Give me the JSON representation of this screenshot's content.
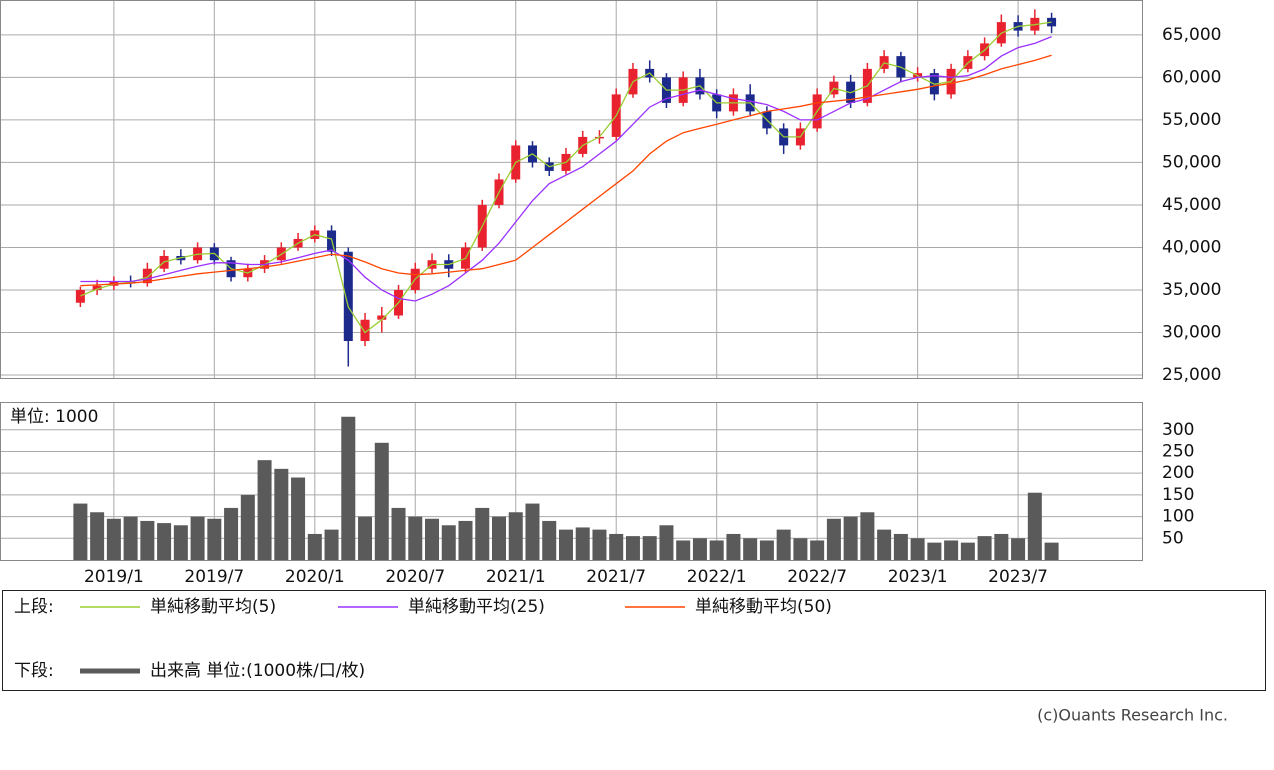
{
  "chart_data": {
    "type": "candlestick",
    "up_color": "#e8232f",
    "down_color": "#1c2a8c",
    "grid": true,
    "x": [
      -2,
      -1,
      0,
      1,
      2,
      3,
      4,
      5,
      6,
      7,
      8,
      9,
      10,
      11,
      12,
      13,
      14,
      15,
      16,
      17,
      18,
      19,
      20,
      21,
      22,
      23,
      24,
      25,
      26,
      27,
      28,
      29,
      30,
      31,
      32,
      33,
      34,
      35,
      36,
      37,
      38,
      39,
      40,
      41,
      42,
      43,
      44,
      45,
      46,
      47,
      48,
      49,
      50,
      51,
      52,
      53,
      54,
      55,
      56
    ],
    "xlim": [
      -6.8,
      61.4
    ],
    "xticks": [
      {
        "value": 0,
        "label": "2019/1"
      },
      {
        "value": 6,
        "label": "2019/7"
      },
      {
        "value": 12,
        "label": "2020/1"
      },
      {
        "value": 18,
        "label": "2020/7"
      },
      {
        "value": 24,
        "label": "2021/1"
      },
      {
        "value": 30,
        "label": "2021/7"
      },
      {
        "value": 36,
        "label": "2022/1"
      },
      {
        "value": 42,
        "label": "2022/7"
      },
      {
        "value": 48,
        "label": "2023/1"
      },
      {
        "value": 54,
        "label": "2023/7"
      }
    ],
    "ylim": [
      24650,
      69100
    ],
    "yticks": [
      {
        "value": 25000,
        "label": "25,000"
      },
      {
        "value": 30000,
        "label": "30,000"
      },
      {
        "value": 35000,
        "label": "35,000"
      },
      {
        "value": 40000,
        "label": "40,000"
      },
      {
        "value": 45000,
        "label": "45,000"
      },
      {
        "value": 50000,
        "label": "50,000"
      },
      {
        "value": 55000,
        "label": "55,000"
      },
      {
        "value": 60000,
        "label": "60,000"
      },
      {
        "value": 65000,
        "label": "65,000"
      }
    ],
    "ohlc": [
      [
        33500,
        35400,
        33000,
        35000
      ],
      [
        35000,
        36200,
        34400,
        35500
      ],
      [
        35500,
        36600,
        35000,
        36000
      ],
      [
        36000,
        36700,
        35300,
        35800
      ],
      [
        35800,
        38200,
        35400,
        37500
      ],
      [
        37500,
        39700,
        37100,
        39000
      ],
      [
        39000,
        39800,
        38000,
        38500
      ],
      [
        38500,
        40600,
        38100,
        40000
      ],
      [
        40000,
        40500,
        38000,
        38500
      ],
      [
        38500,
        38900,
        36000,
        36500
      ],
      [
        36500,
        38100,
        36000,
        37500
      ],
      [
        37500,
        39100,
        37000,
        38500
      ],
      [
        38500,
        40600,
        38100,
        40000
      ],
      [
        40000,
        41700,
        39600,
        41000
      ],
      [
        41000,
        42600,
        40600,
        42000
      ],
      [
        42000,
        42600,
        39000,
        39500
      ],
      [
        39500,
        40000,
        26000,
        29000
      ],
      [
        29000,
        32300,
        28400,
        31500
      ],
      [
        31500,
        33000,
        30000,
        32000
      ],
      [
        32000,
        35600,
        31600,
        35000
      ],
      [
        35000,
        38200,
        34600,
        37500
      ],
      [
        37500,
        39300,
        37000,
        38500
      ],
      [
        38500,
        39200,
        36500,
        37500
      ],
      [
        37500,
        40600,
        37000,
        40000
      ],
      [
        40000,
        45600,
        39600,
        45000
      ],
      [
        45000,
        48700,
        44600,
        48000
      ],
      [
        48000,
        52600,
        47600,
        52000
      ],
      [
        52000,
        52500,
        49400,
        50000
      ],
      [
        50000,
        50600,
        48400,
        49000
      ],
      [
        49000,
        51700,
        48600,
        51000
      ],
      [
        51000,
        53700,
        50600,
        53000
      ],
      [
        53000,
        53800,
        52200,
        53000
      ],
      [
        53000,
        58700,
        52600,
        58000
      ],
      [
        58000,
        61700,
        57600,
        61000
      ],
      [
        61000,
        62000,
        59400,
        60000
      ],
      [
        60000,
        60500,
        56400,
        57000
      ],
      [
        57000,
        60700,
        56600,
        60000
      ],
      [
        60000,
        61000,
        57400,
        58000
      ],
      [
        58000,
        58600,
        55200,
        56000
      ],
      [
        56000,
        58700,
        55500,
        58000
      ],
      [
        58000,
        59200,
        55400,
        56000
      ],
      [
        56000,
        56600,
        53300,
        54000
      ],
      [
        54000,
        54600,
        51000,
        52000
      ],
      [
        52000,
        54700,
        51500,
        54000
      ],
      [
        54000,
        58700,
        53600,
        58000
      ],
      [
        58000,
        60200,
        57600,
        59500
      ],
      [
        59500,
        60300,
        56400,
        57000
      ],
      [
        57000,
        61700,
        56600,
        61000
      ],
      [
        61000,
        63200,
        60500,
        62500
      ],
      [
        62500,
        63000,
        59400,
        60000
      ],
      [
        60000,
        61200,
        59500,
        60500
      ],
      [
        60500,
        61000,
        57300,
        58000
      ],
      [
        58000,
        61600,
        57500,
        61000
      ],
      [
        61000,
        63200,
        60600,
        62500
      ],
      [
        62500,
        64700,
        62000,
        64000
      ],
      [
        64000,
        67400,
        63600,
        66500
      ],
      [
        66500,
        67300,
        64800,
        65500
      ],
      [
        65500,
        68000,
        65000,
        67000
      ],
      [
        67000,
        67600,
        65200,
        66000
      ]
    ],
    "lines": [
      {
        "name": "単純移動平均(5)",
        "color": "#9acd32",
        "values": [
          34300,
          35100,
          35700,
          35900,
          36500,
          38300,
          38800,
          39200,
          39300,
          37500,
          37000,
          38000,
          39200,
          40500,
          41500,
          41000,
          33000,
          30000,
          31500,
          33500,
          36300,
          38000,
          38000,
          38700,
          42500,
          46500,
          50000,
          51000,
          49500,
          50000,
          52000,
          53000,
          55500,
          59500,
          60500,
          58500,
          58500,
          59000,
          57000,
          57000,
          57000,
          55000,
          53000,
          53000,
          56000,
          58700,
          58200,
          59000,
          61700,
          61200,
          60200,
          59200,
          59500,
          61700,
          63200,
          65200,
          66000,
          66200,
          66500
        ]
      },
      {
        "name": "単純移動平均(25)",
        "color": "#9b30ff",
        "values": [
          36000,
          36000,
          36000,
          36000,
          36300,
          36800,
          37300,
          37800,
          38200,
          38200,
          38000,
          38000,
          38300,
          38800,
          39300,
          39700,
          38500,
          36500,
          35000,
          34000,
          33700,
          34500,
          35500,
          37000,
          38500,
          40500,
          43000,
          45500,
          47500,
          48500,
          49500,
          51000,
          52500,
          54500,
          56500,
          57500,
          58000,
          58500,
          58000,
          57500,
          57200,
          56800,
          56000,
          55000,
          55000,
          56000,
          57000,
          57500,
          58500,
          59500,
          60000,
          60200,
          60000,
          60200,
          61000,
          62500,
          63500,
          64000,
          64800
        ]
      },
      {
        "name": "単純移動平均(50)",
        "color": "#ff4500",
        "values": [
          35500,
          35600,
          35700,
          35800,
          36000,
          36300,
          36600,
          36900,
          37100,
          37300,
          37500,
          37700,
          38000,
          38400,
          38800,
          39200,
          39000,
          38300,
          37500,
          37000,
          36800,
          36900,
          37100,
          37300,
          37500,
          38000,
          38500,
          40000,
          41500,
          43000,
          44500,
          46000,
          47500,
          49000,
          51000,
          52500,
          53500,
          54000,
          54500,
          55000,
          55500,
          56000,
          56300,
          56600,
          57000,
          57200,
          57400,
          57700,
          58000,
          58300,
          58600,
          59000,
          59300,
          59700,
          60300,
          61000,
          61500,
          62000,
          62600
        ]
      }
    ],
    "volume": {
      "label": "単位: 1000",
      "color": "#5a5a5a",
      "ylim": [
        0,
        364
      ],
      "yticks": [
        50,
        100,
        150,
        200,
        250,
        300
      ],
      "values": [
        130,
        110,
        95,
        100,
        90,
        85,
        80,
        100,
        95,
        120,
        150,
        230,
        210,
        190,
        60,
        70,
        330,
        100,
        270,
        120,
        100,
        95,
        80,
        90,
        120,
        100,
        110,
        130,
        90,
        70,
        75,
        70,
        60,
        55,
        55,
        80,
        45,
        50,
        45,
        60,
        50,
        45,
        70,
        50,
        45,
        95,
        100,
        110,
        70,
        60,
        50,
        40,
        45,
        40,
        55,
        60,
        50,
        155,
        40
      ]
    },
    "legend": {
      "upper": "上段:",
      "lower": "下段:",
      "volume_name": "出来高 単位:(1000株/口/枚)"
    },
    "copyright": "(c)Ouants Research Inc."
  }
}
